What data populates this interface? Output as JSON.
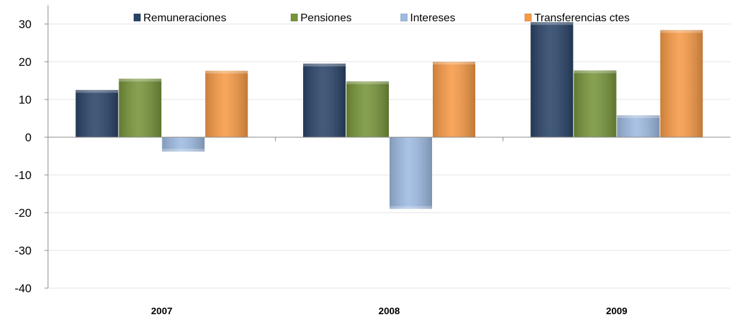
{
  "chart_data": {
    "type": "bar",
    "categories": [
      "2007",
      "2008",
      "2009"
    ],
    "series": [
      {
        "name": "Remuneraciones",
        "values": [
          12.5,
          19.5,
          30.5
        ],
        "color": "#2a4468"
      },
      {
        "name": "Pensiones",
        "values": [
          15.5,
          14.8,
          17.7
        ],
        "color": "#77943a"
      },
      {
        "name": "Intereses",
        "values": [
          -3.8,
          -19.0,
          5.8
        ],
        "color": "#9ebbe2"
      },
      {
        "name": "Transferencias ctes",
        "values": [
          17.6,
          20.0,
          28.4
        ],
        "color": "#f79a46"
      }
    ],
    "ylim": [
      -40,
      35
    ],
    "yticks": [
      "30",
      "20",
      "10",
      "0",
      "-10",
      "-20",
      "-30",
      "-40"
    ],
    "gridlines": true,
    "legend_position": "top"
  }
}
